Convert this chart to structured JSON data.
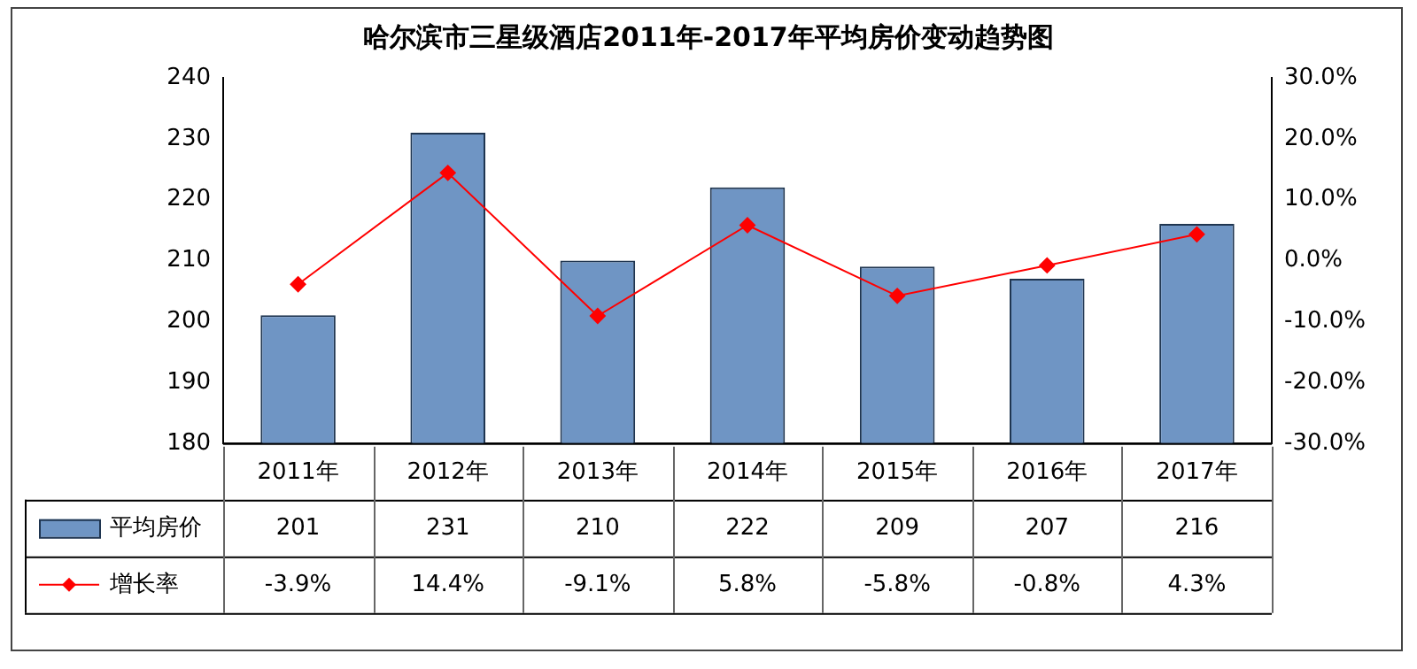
{
  "chart_data": {
    "type": "bar",
    "title": "哈尔滨市三星级酒店2011年-2017年平均房价变动趋势图",
    "categories": [
      "2011年",
      "2012年",
      "2013年",
      "2014年",
      "2015年",
      "2016年",
      "2017年"
    ],
    "series": [
      {
        "name": "平均房价",
        "color": "#6f95c4",
        "values": [
          201,
          231,
          210,
          222,
          209,
          207,
          216
        ],
        "value_labels": [
          "201",
          "231",
          "210",
          "222",
          "209",
          "207",
          "216"
        ]
      },
      {
        "name": "增长率",
        "type": "line",
        "axis": "y2",
        "color": "#ff0000",
        "values": [
          -3.9,
          14.4,
          -9.1,
          5.8,
          -5.8,
          -0.8,
          4.3
        ],
        "value_labels": [
          "-3.9%",
          "14.4%",
          "-9.1%",
          "5.8%",
          "-5.8%",
          "-0.8%",
          "4.3%"
        ]
      }
    ],
    "ylim": [
      180,
      240
    ],
    "yticks": [
      180,
      190,
      200,
      210,
      220,
      230,
      240
    ],
    "y2lim": [
      -30,
      30
    ],
    "y2ticks": [
      {
        "value": -30,
        "label": "-30.0%"
      },
      {
        "value": -20,
        "label": "-20.0%"
      },
      {
        "value": -10,
        "label": "-10.0%"
      },
      {
        "value": 0,
        "label": "0.0%"
      },
      {
        "value": 10,
        "label": "10.0%"
      },
      {
        "value": 20,
        "label": "20.0%"
      },
      {
        "value": 30,
        "label": "30.0%"
      }
    ],
    "marker": "diamond",
    "legend": "bottom",
    "grid": false
  }
}
